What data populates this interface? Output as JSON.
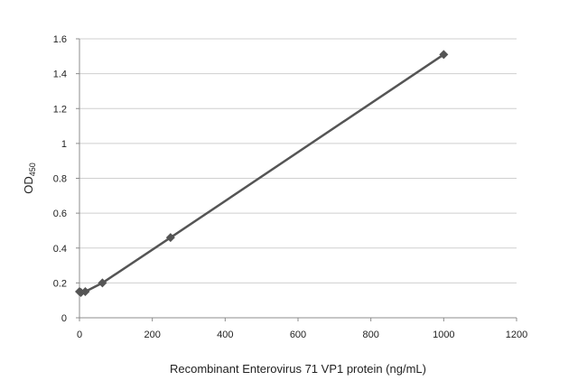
{
  "chart_data": {
    "type": "line",
    "xlabel": "Recombinant Enterovirus 71 VP1 protein (ng/mL)",
    "ylabel": "OD",
    "ylabel_subscript": "450",
    "xlim": [
      0,
      1200
    ],
    "ylim": [
      0,
      1.6
    ],
    "x_ticks": [
      "0",
      "200",
      "400",
      "600",
      "800",
      "1000",
      "1200"
    ],
    "y_ticks": [
      "0",
      "0.2",
      "0.4",
      "0.6",
      "0.8",
      "1",
      "1.2",
      "1.4",
      "1.6"
    ],
    "grid": "horizontal",
    "series": [
      {
        "marker": "diamond",
        "color": "#555555",
        "points": [
          {
            "x": 0,
            "y": 0.15
          },
          {
            "x": 4,
            "y": 0.145
          },
          {
            "x": 16,
            "y": 0.15
          },
          {
            "x": 63,
            "y": 0.2
          },
          {
            "x": 250,
            "y": 0.46
          },
          {
            "x": 1000,
            "y": 1.51
          }
        ]
      }
    ]
  }
}
